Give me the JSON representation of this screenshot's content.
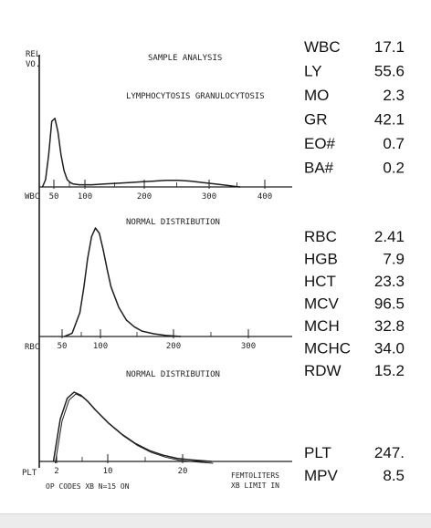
{
  "header": {
    "rel_label": "REL",
    "vol_label": "VO.",
    "sample_title": "SAMPLE ANALYSIS"
  },
  "footer": {
    "left_text": "OP CODES XB N=15  ON",
    "right_line1": "FEMTOLITERS",
    "right_line2": "XB LIMIT IN"
  },
  "colors": {
    "ink": "#1f1f1f",
    "values": "#111111",
    "background": "#ffffff"
  },
  "chart_data": [
    {
      "type": "line",
      "id": "wbc",
      "title": "LYMPHOCYTOSIS GRANULOCYTOSIS",
      "axis_label": "WBC",
      "x_ticks": [
        "50",
        "100",
        "200",
        "300",
        "400"
      ],
      "grid": false,
      "x": [
        40,
        45,
        50,
        55,
        60,
        65,
        70,
        75,
        80,
        85,
        90,
        100,
        120,
        140,
        160,
        180,
        200,
        220,
        240,
        260,
        280,
        300,
        320,
        340,
        360
      ],
      "y": [
        0,
        5,
        22,
        45,
        47,
        38,
        22,
        11,
        5,
        3,
        2,
        1.5,
        1.5,
        2,
        2.5,
        3,
        3.5,
        4,
        4.5,
        4.5,
        4,
        3,
        2,
        1,
        0
      ]
    },
    {
      "type": "line",
      "id": "rbc",
      "title": "NORMAL DISTRIBUTION",
      "axis_label": "RBC",
      "x_ticks": [
        "50",
        "100",
        "200",
        "300"
      ],
      "grid": false,
      "x": [
        60,
        70,
        80,
        85,
        90,
        95,
        100,
        105,
        110,
        115,
        120,
        130,
        140,
        150,
        160,
        175,
        190,
        210
      ],
      "y": [
        0,
        3,
        22,
        45,
        72,
        92,
        100,
        95,
        80,
        62,
        46,
        27,
        15,
        9,
        5,
        2.5,
        1,
        0
      ]
    },
    {
      "type": "line",
      "id": "plt",
      "title": "NORMAL DISTRIBUTION",
      "axis_label": "PLT",
      "x_ticks": [
        "2",
        "10",
        "20"
      ],
      "grid": false,
      "x": [
        2,
        3,
        4,
        5,
        6,
        7,
        8,
        10,
        12,
        14,
        16,
        18,
        20,
        22,
        25
      ],
      "y": [
        0,
        55,
        82,
        90,
        86,
        78,
        68,
        50,
        35,
        23,
        14,
        8,
        4,
        2,
        0
      ]
    }
  ],
  "results": {
    "wbc": [
      {
        "label": "WBC",
        "value": "17.1"
      },
      {
        "label": "LY",
        "value": "55.6"
      },
      {
        "label": "MO",
        "value": "2.3"
      },
      {
        "label": "GR",
        "value": "42.1"
      },
      {
        "label": "EO#",
        "value": "0.7"
      },
      {
        "label": "BA#",
        "value": "0.2"
      }
    ],
    "rbc": [
      {
        "label": "RBC",
        "value": "2.41"
      },
      {
        "label": "HGB",
        "value": "7.9"
      },
      {
        "label": "HCT",
        "value": "23.3"
      },
      {
        "label": "MCV",
        "value": "96.5"
      },
      {
        "label": "MCH",
        "value": "32.8"
      },
      {
        "label": "MCHC",
        "value": "34.0"
      },
      {
        "label": "RDW",
        "value": "15.2"
      }
    ],
    "plt": [
      {
        "label": "PLT",
        "value": "247."
      },
      {
        "label": "MPV",
        "value": "8.5"
      }
    ]
  }
}
